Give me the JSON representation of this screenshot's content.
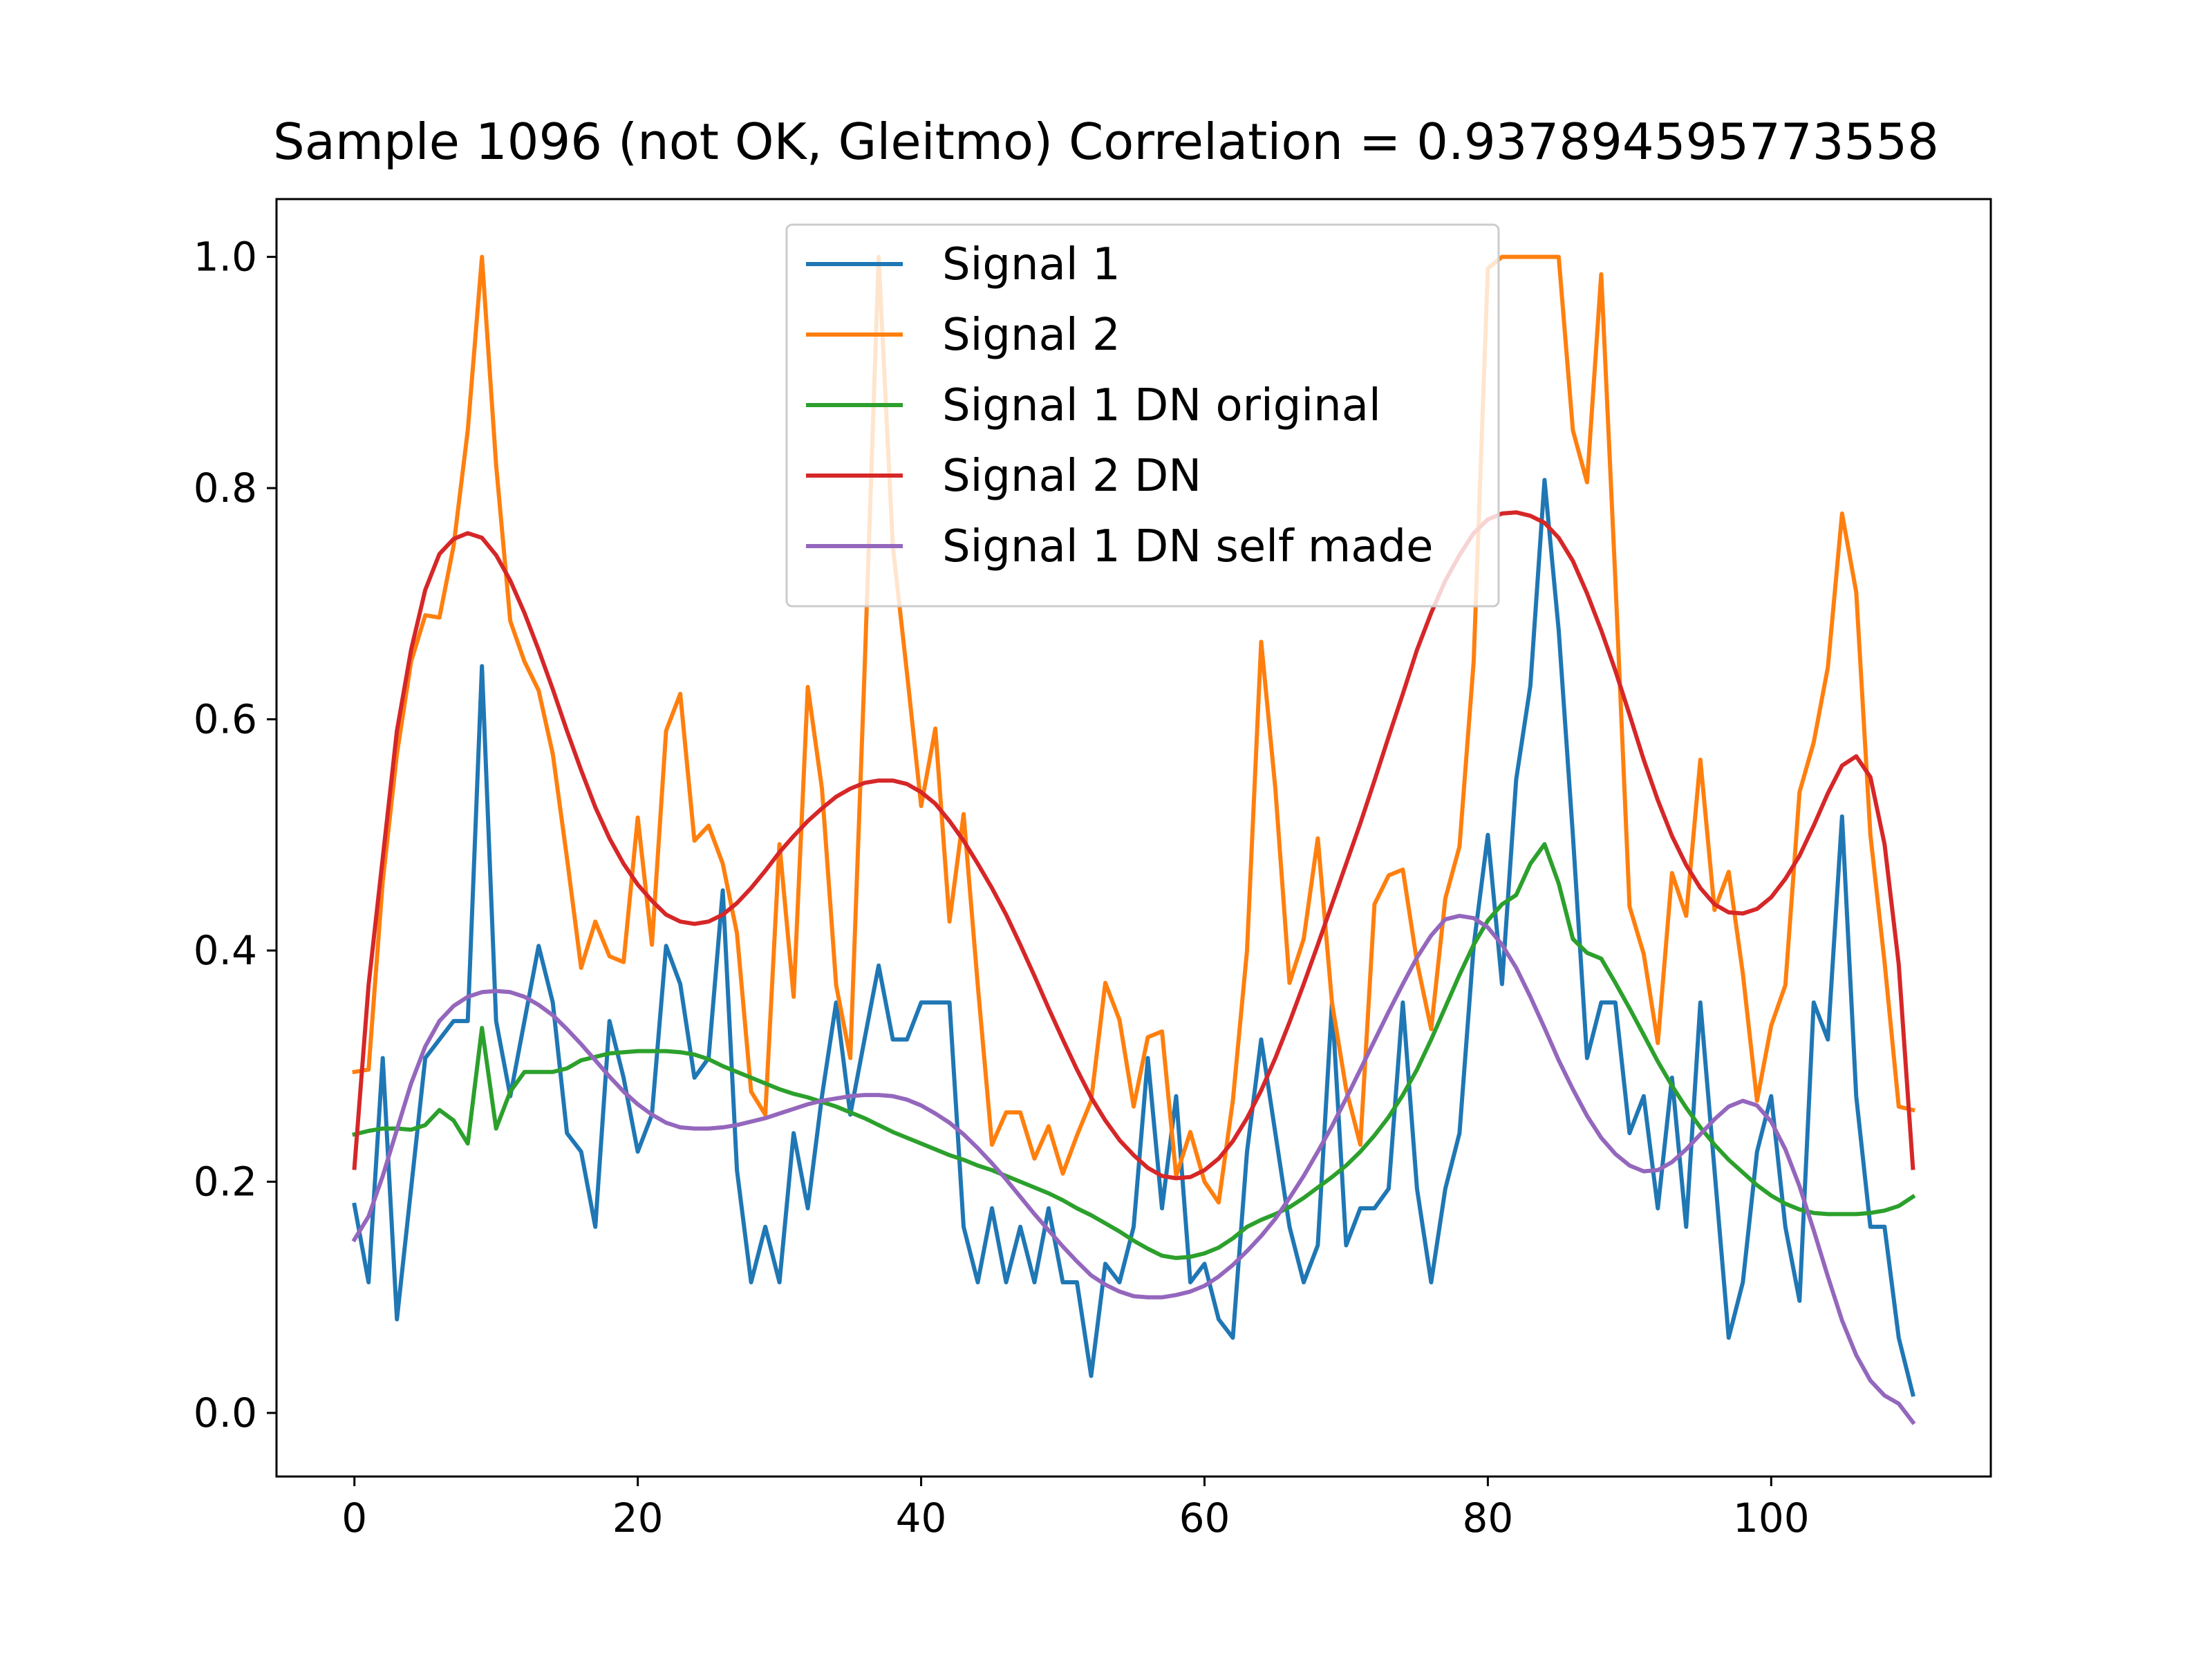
{
  "chart_data": {
    "type": "line",
    "title": "Sample 1096 (not OK, Gleitmo)  Correlation = 0.937894595773558",
    "xlabel": "",
    "ylabel": "",
    "xlim": [
      -5.5,
      115.5
    ],
    "ylim": [
      -0.055,
      1.05
    ],
    "xticks": [
      "0",
      "20",
      "40",
      "60",
      "80",
      "100"
    ],
    "yticks": [
      "0.0",
      "0.2",
      "0.4",
      "0.6",
      "0.8",
      "1.0"
    ],
    "grid": false,
    "legend_position": "upper center",
    "series": [
      {
        "name": "Signal 1",
        "color": "#1f77b4",
        "x_start": 0,
        "values": [
          0.18,
          0.113,
          0.307,
          0.081,
          0.194,
          0.307,
          0.323,
          0.339,
          0.339,
          0.646,
          0.339,
          0.274,
          0.339,
          0.404,
          0.355,
          0.242,
          0.226,
          0.161,
          0.339,
          0.29,
          0.226,
          0.258,
          0.404,
          0.371,
          0.29,
          0.307,
          0.452,
          0.21,
          0.113,
          0.161,
          0.113,
          0.242,
          0.177,
          0.274,
          0.355,
          0.258,
          0.323,
          0.387,
          0.323,
          0.323,
          0.355,
          0.355,
          0.355,
          0.161,
          0.113,
          0.177,
          0.113,
          0.161,
          0.113,
          0.177,
          0.113,
          0.113,
          0.032,
          0.129,
          0.113,
          0.161,
          0.307,
          0.177,
          0.274,
          0.113,
          0.129,
          0.081,
          0.065,
          0.226,
          0.323,
          0.242,
          0.161,
          0.113,
          0.145,
          0.355,
          0.145,
          0.177,
          0.177,
          0.194,
          0.355,
          0.194,
          0.113,
          0.194,
          0.242,
          0.404,
          0.5,
          0.371,
          0.548,
          0.629,
          0.807,
          0.677,
          0.5,
          0.307,
          0.355,
          0.355,
          0.242,
          0.274,
          0.177,
          0.29,
          0.161,
          0.355,
          0.21,
          0.065,
          0.113,
          0.226,
          0.274,
          0.161,
          0.097,
          0.355,
          0.323,
          0.516,
          0.274,
          0.161,
          0.161,
          0.065,
          0.016
        ]
      },
      {
        "name": "Signal 2",
        "color": "#ff7f0e",
        "x_start": 0,
        "values": [
          0.295,
          0.297,
          0.46,
          0.57,
          0.65,
          0.69,
          0.688,
          0.75,
          0.85,
          1.0,
          0.82,
          0.685,
          0.65,
          0.625,
          0.57,
          0.48,
          0.385,
          0.425,
          0.395,
          0.39,
          0.515,
          0.405,
          0.59,
          0.622,
          0.495,
          0.508,
          0.475,
          0.415,
          0.278,
          0.258,
          0.492,
          0.36,
          0.628,
          0.54,
          0.37,
          0.307,
          0.64,
          1.0,
          0.75,
          0.64,
          0.525,
          0.592,
          0.425,
          0.518,
          0.37,
          0.232,
          0.26,
          0.26,
          0.22,
          0.248,
          0.207,
          0.24,
          0.27,
          0.372,
          0.34,
          0.265,
          0.325,
          0.33,
          0.205,
          0.243,
          0.2,
          0.182,
          0.27,
          0.4,
          0.667,
          0.54,
          0.372,
          0.41,
          0.497,
          0.355,
          0.28,
          0.232,
          0.44,
          0.465,
          0.47,
          0.39,
          0.332,
          0.445,
          0.49,
          0.65,
          0.99,
          1.0,
          1.0,
          1.0,
          1.0,
          1.0,
          0.85,
          0.805,
          0.985,
          0.72,
          0.438,
          0.397,
          0.32,
          0.467,
          0.43,
          0.565,
          0.435,
          0.468,
          0.38,
          0.27,
          0.335,
          0.37,
          0.537,
          0.58,
          0.645,
          0.778,
          0.71,
          0.5,
          0.39,
          0.265,
          0.262
        ]
      },
      {
        "name": "Signal 1 DN original",
        "color": "#2ca02c",
        "x_start": 0,
        "values": [
          0.241,
          0.244,
          0.246,
          0.246,
          0.245,
          0.249,
          0.262,
          0.253,
          0.233,
          0.333,
          0.246,
          0.278,
          0.295,
          0.295,
          0.295,
          0.298,
          0.305,
          0.308,
          0.311,
          0.312,
          0.313,
          0.313,
          0.313,
          0.312,
          0.31,
          0.306,
          0.3,
          0.295,
          0.29,
          0.285,
          0.28,
          0.276,
          0.273,
          0.269,
          0.265,
          0.26,
          0.255,
          0.249,
          0.243,
          0.238,
          0.233,
          0.228,
          0.223,
          0.219,
          0.214,
          0.21,
          0.205,
          0.2,
          0.195,
          0.19,
          0.184,
          0.177,
          0.171,
          0.164,
          0.157,
          0.149,
          0.142,
          0.136,
          0.134,
          0.135,
          0.138,
          0.143,
          0.151,
          0.161,
          0.167,
          0.172,
          0.178,
          0.186,
          0.195,
          0.204,
          0.214,
          0.226,
          0.24,
          0.256,
          0.275,
          0.297,
          0.323,
          0.351,
          0.379,
          0.405,
          0.426,
          0.44,
          0.448,
          0.475,
          0.492,
          0.458,
          0.41,
          0.398,
          0.393,
          0.372,
          0.35,
          0.327,
          0.304,
          0.283,
          0.264,
          0.247,
          0.232,
          0.219,
          0.208,
          0.197,
          0.188,
          0.181,
          0.176,
          0.173,
          0.172,
          0.172,
          0.172,
          0.173,
          0.175,
          0.179,
          0.187
        ]
      },
      {
        "name": "Signal 2 DN",
        "color": "#d62728",
        "x_start": 0,
        "values": [
          0.212,
          0.37,
          0.48,
          0.59,
          0.66,
          0.712,
          0.743,
          0.756,
          0.761,
          0.757,
          0.742,
          0.72,
          0.692,
          0.66,
          0.626,
          0.59,
          0.556,
          0.524,
          0.497,
          0.475,
          0.457,
          0.443,
          0.431,
          0.425,
          0.423,
          0.425,
          0.431,
          0.441,
          0.454,
          0.469,
          0.485,
          0.499,
          0.512,
          0.523,
          0.533,
          0.54,
          0.545,
          0.547,
          0.547,
          0.544,
          0.537,
          0.527,
          0.512,
          0.495,
          0.475,
          0.454,
          0.431,
          0.405,
          0.378,
          0.35,
          0.323,
          0.297,
          0.273,
          0.253,
          0.236,
          0.223,
          0.212,
          0.205,
          0.203,
          0.204,
          0.21,
          0.22,
          0.235,
          0.255,
          0.279,
          0.307,
          0.338,
          0.371,
          0.405,
          0.44,
          0.475,
          0.51,
          0.547,
          0.585,
          0.622,
          0.66,
          0.692,
          0.72,
          0.742,
          0.761,
          0.773,
          0.778,
          0.779,
          0.776,
          0.77,
          0.757,
          0.737,
          0.709,
          0.677,
          0.642,
          0.604,
          0.565,
          0.53,
          0.499,
          0.474,
          0.454,
          0.44,
          0.433,
          0.432,
          0.436,
          0.446,
          0.462,
          0.482,
          0.508,
          0.536,
          0.56,
          0.568,
          0.55,
          0.492,
          0.388,
          0.212
        ]
      },
      {
        "name": "Signal 1 DN self made",
        "color": "#9467bd",
        "x_start": 0,
        "values": [
          0.15,
          0.17,
          0.205,
          0.245,
          0.285,
          0.317,
          0.339,
          0.352,
          0.36,
          0.364,
          0.365,
          0.364,
          0.36,
          0.353,
          0.344,
          0.332,
          0.319,
          0.305,
          0.291,
          0.278,
          0.267,
          0.258,
          0.251,
          0.247,
          0.246,
          0.246,
          0.247,
          0.249,
          0.252,
          0.255,
          0.259,
          0.263,
          0.267,
          0.27,
          0.272,
          0.274,
          0.275,
          0.275,
          0.274,
          0.271,
          0.266,
          0.259,
          0.251,
          0.241,
          0.229,
          0.216,
          0.202,
          0.187,
          0.172,
          0.158,
          0.144,
          0.131,
          0.119,
          0.111,
          0.105,
          0.101,
          0.1,
          0.1,
          0.102,
          0.105,
          0.11,
          0.118,
          0.128,
          0.14,
          0.153,
          0.168,
          0.186,
          0.205,
          0.226,
          0.248,
          0.272,
          0.297,
          0.322,
          0.347,
          0.371,
          0.394,
          0.413,
          0.427,
          0.43,
          0.428,
          0.42,
          0.405,
          0.385,
          0.36,
          0.333,
          0.305,
          0.28,
          0.257,
          0.238,
          0.224,
          0.214,
          0.209,
          0.21,
          0.217,
          0.228,
          0.241,
          0.254,
          0.265,
          0.27,
          0.266,
          0.252,
          0.228,
          0.196,
          0.158,
          0.118,
          0.08,
          0.05,
          0.028,
          0.015,
          0.008,
          -0.008
        ]
      }
    ]
  }
}
